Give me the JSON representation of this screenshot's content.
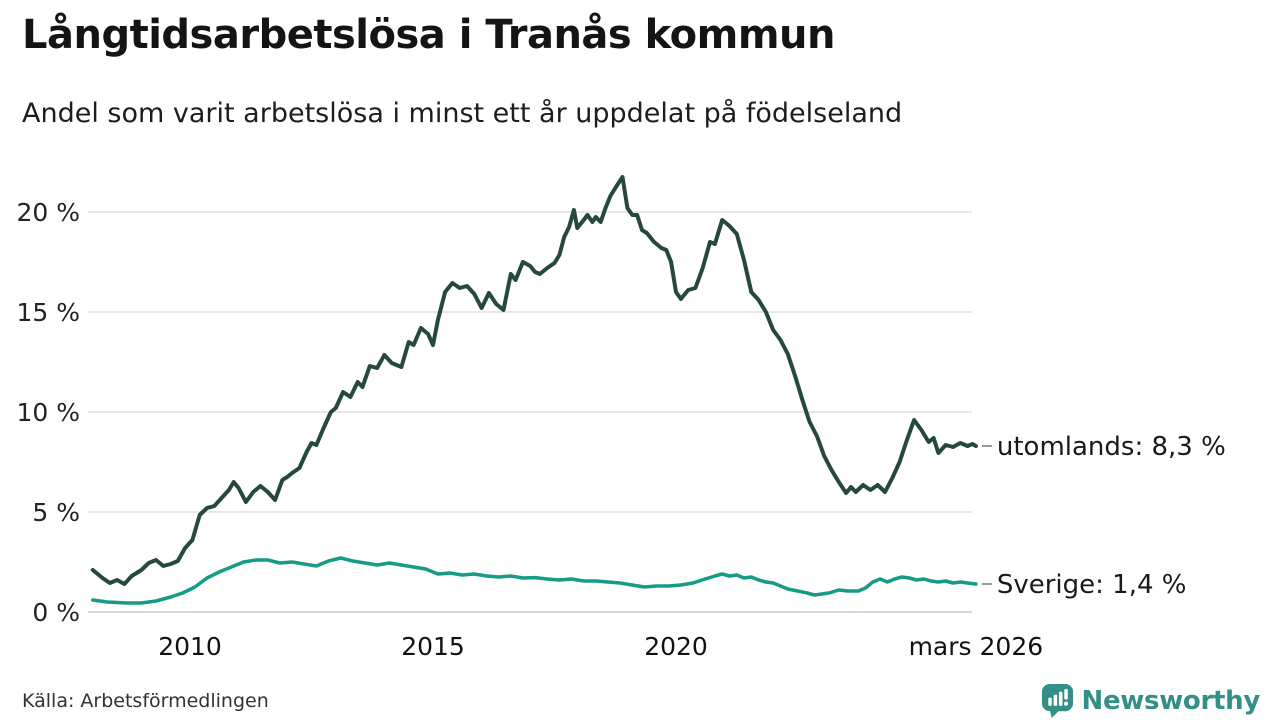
{
  "header": {
    "title": "Långtidsarbetslösa i Tranås kommun",
    "subtitle": "Andel som varit arbetslösa i minst ett år uppdelat på födelseland"
  },
  "footer": {
    "source": "Källa: Arbetsförmedlingen",
    "brand": "Newsworthy"
  },
  "colors": {
    "utomlands_line": "#25493d",
    "sverige_line": "#169b87",
    "grid": "#e7e7e7",
    "zero_line": "#d6d6d6",
    "tick_text": "#222222",
    "label_text": "#1a1a1a",
    "label_dash": "#999999",
    "brand_teal": "#338f87"
  },
  "chart_data": {
    "type": "line",
    "title": "Långtidsarbetslösa i Tranås kommun",
    "subtitle": "Andel som varit arbetslösa i minst ett år uppdelat på födelseland",
    "xlabel": "",
    "ylabel": "",
    "y_axis": {
      "range": [
        0,
        22
      ],
      "grid": true,
      "ticks": [
        {
          "v": 0,
          "label": "0 %"
        },
        {
          "v": 5,
          "label": "5 %"
        },
        {
          "v": 10,
          "label": "10 %"
        },
        {
          "v": 15,
          "label": "15 %"
        },
        {
          "v": 20,
          "label": "20 %"
        }
      ]
    },
    "x_axis": {
      "range": [
        2008.0,
        2026.25
      ],
      "ticks": [
        {
          "t": 2010,
          "label": "2010"
        },
        {
          "t": 2015,
          "label": "2015"
        },
        {
          "t": 2020,
          "label": "2020"
        },
        {
          "t": 2026.17,
          "label": "mars 2026"
        }
      ]
    },
    "legend_position": "end-of-line-labels",
    "series": [
      {
        "name": "utomlands",
        "end_label": "utomlands: 8,3 %",
        "last_value": 8.3,
        "color": "#25493d",
        "stroke_width": 4,
        "points": [
          [
            2008.0,
            2.1
          ],
          [
            2008.2,
            1.7
          ],
          [
            2008.35,
            1.45
          ],
          [
            2008.5,
            1.6
          ],
          [
            2008.65,
            1.4
          ],
          [
            2008.8,
            1.8
          ],
          [
            2009.0,
            2.1
          ],
          [
            2009.15,
            2.45
          ],
          [
            2009.3,
            2.6
          ],
          [
            2009.45,
            2.3
          ],
          [
            2009.6,
            2.4
          ],
          [
            2009.75,
            2.55
          ],
          [
            2009.9,
            3.2
          ],
          [
            2010.05,
            3.6
          ],
          [
            2010.2,
            4.85
          ],
          [
            2010.35,
            5.2
          ],
          [
            2010.5,
            5.3
          ],
          [
            2010.65,
            5.7
          ],
          [
            2010.8,
            6.1
          ],
          [
            2010.9,
            6.5
          ],
          [
            2011.0,
            6.2
          ],
          [
            2011.15,
            5.5
          ],
          [
            2011.3,
            6.0
          ],
          [
            2011.45,
            6.3
          ],
          [
            2011.6,
            6.0
          ],
          [
            2011.75,
            5.6
          ],
          [
            2011.9,
            6.6
          ],
          [
            2012.0,
            6.75
          ],
          [
            2012.1,
            6.95
          ],
          [
            2012.25,
            7.2
          ],
          [
            2012.4,
            8.0
          ],
          [
            2012.5,
            8.45
          ],
          [
            2012.6,
            8.35
          ],
          [
            2012.75,
            9.2
          ],
          [
            2012.9,
            10.0
          ],
          [
            2013.0,
            10.2
          ],
          [
            2013.15,
            11.0
          ],
          [
            2013.3,
            10.75
          ],
          [
            2013.45,
            11.5
          ],
          [
            2013.55,
            11.25
          ],
          [
            2013.7,
            12.3
          ],
          [
            2013.85,
            12.2
          ],
          [
            2014.0,
            12.85
          ],
          [
            2014.15,
            12.45
          ],
          [
            2014.35,
            12.25
          ],
          [
            2014.5,
            13.5
          ],
          [
            2014.6,
            13.35
          ],
          [
            2014.75,
            14.2
          ],
          [
            2014.9,
            13.9
          ],
          [
            2015.0,
            13.35
          ],
          [
            2015.1,
            14.6
          ],
          [
            2015.25,
            16.0
          ],
          [
            2015.4,
            16.45
          ],
          [
            2015.55,
            16.2
          ],
          [
            2015.7,
            16.3
          ],
          [
            2015.85,
            15.9
          ],
          [
            2016.0,
            15.2
          ],
          [
            2016.15,
            15.95
          ],
          [
            2016.3,
            15.4
          ],
          [
            2016.45,
            15.1
          ],
          [
            2016.6,
            16.9
          ],
          [
            2016.7,
            16.6
          ],
          [
            2016.85,
            17.5
          ],
          [
            2017.0,
            17.3
          ],
          [
            2017.1,
            17.0
          ],
          [
            2017.2,
            16.9
          ],
          [
            2017.35,
            17.2
          ],
          [
            2017.5,
            17.45
          ],
          [
            2017.6,
            17.85
          ],
          [
            2017.7,
            18.75
          ],
          [
            2017.8,
            19.25
          ],
          [
            2017.9,
            20.1
          ],
          [
            2017.97,
            19.2
          ],
          [
            2018.1,
            19.6
          ],
          [
            2018.18,
            19.85
          ],
          [
            2018.28,
            19.5
          ],
          [
            2018.35,
            19.75
          ],
          [
            2018.45,
            19.5
          ],
          [
            2018.55,
            20.2
          ],
          [
            2018.65,
            20.8
          ],
          [
            2018.75,
            21.2
          ],
          [
            2018.9,
            21.75
          ],
          [
            2019.0,
            20.2
          ],
          [
            2019.1,
            19.85
          ],
          [
            2019.2,
            19.85
          ],
          [
            2019.3,
            19.1
          ],
          [
            2019.4,
            18.95
          ],
          [
            2019.55,
            18.5
          ],
          [
            2019.7,
            18.2
          ],
          [
            2019.8,
            18.1
          ],
          [
            2019.9,
            17.5
          ],
          [
            2020.0,
            16.0
          ],
          [
            2020.1,
            15.65
          ],
          [
            2020.25,
            16.1
          ],
          [
            2020.4,
            16.2
          ],
          [
            2020.55,
            17.2
          ],
          [
            2020.7,
            18.5
          ],
          [
            2020.8,
            18.4
          ],
          [
            2020.95,
            19.6
          ],
          [
            2021.1,
            19.3
          ],
          [
            2021.25,
            18.9
          ],
          [
            2021.4,
            17.6
          ],
          [
            2021.55,
            16.0
          ],
          [
            2021.7,
            15.6
          ],
          [
            2021.85,
            15.0
          ],
          [
            2022.0,
            14.1
          ],
          [
            2022.15,
            13.6
          ],
          [
            2022.3,
            12.9
          ],
          [
            2022.45,
            11.8
          ],
          [
            2022.6,
            10.6
          ],
          [
            2022.75,
            9.5
          ],
          [
            2022.9,
            8.8
          ],
          [
            2023.05,
            7.8
          ],
          [
            2023.2,
            7.1
          ],
          [
            2023.35,
            6.5
          ],
          [
            2023.5,
            5.95
          ],
          [
            2023.6,
            6.25
          ],
          [
            2023.7,
            6.0
          ],
          [
            2023.85,
            6.35
          ],
          [
            2024.0,
            6.1
          ],
          [
            2024.15,
            6.35
          ],
          [
            2024.3,
            6.0
          ],
          [
            2024.45,
            6.7
          ],
          [
            2024.6,
            7.5
          ],
          [
            2024.75,
            8.6
          ],
          [
            2024.9,
            9.6
          ],
          [
            2025.05,
            9.1
          ],
          [
            2025.2,
            8.5
          ],
          [
            2025.3,
            8.7
          ],
          [
            2025.4,
            7.95
          ],
          [
            2025.55,
            8.35
          ],
          [
            2025.7,
            8.25
          ],
          [
            2025.85,
            8.45
          ],
          [
            2026.0,
            8.3
          ],
          [
            2026.1,
            8.4
          ],
          [
            2026.17,
            8.3
          ]
        ]
      },
      {
        "name": "Sverige",
        "end_label": "Sverige: 1,4 %",
        "last_value": 1.4,
        "color": "#169b87",
        "stroke_width": 3.5,
        "points": [
          [
            2008.0,
            0.6
          ],
          [
            2008.3,
            0.5
          ],
          [
            2008.7,
            0.45
          ],
          [
            2009.0,
            0.45
          ],
          [
            2009.3,
            0.55
          ],
          [
            2009.6,
            0.75
          ],
          [
            2009.85,
            0.95
          ],
          [
            2010.1,
            1.25
          ],
          [
            2010.35,
            1.7
          ],
          [
            2010.6,
            2.0
          ],
          [
            2010.85,
            2.25
          ],
          [
            2011.1,
            2.5
          ],
          [
            2011.35,
            2.6
          ],
          [
            2011.6,
            2.6
          ],
          [
            2011.85,
            2.45
          ],
          [
            2012.1,
            2.5
          ],
          [
            2012.35,
            2.4
          ],
          [
            2012.6,
            2.3
          ],
          [
            2012.85,
            2.55
          ],
          [
            2013.1,
            2.7
          ],
          [
            2013.35,
            2.55
          ],
          [
            2013.6,
            2.45
          ],
          [
            2013.85,
            2.35
          ],
          [
            2014.1,
            2.45
          ],
          [
            2014.35,
            2.35
          ],
          [
            2014.6,
            2.25
          ],
          [
            2014.85,
            2.15
          ],
          [
            2015.1,
            1.9
          ],
          [
            2015.35,
            1.95
          ],
          [
            2015.6,
            1.85
          ],
          [
            2015.85,
            1.9
          ],
          [
            2016.1,
            1.8
          ],
          [
            2016.35,
            1.75
          ],
          [
            2016.6,
            1.8
          ],
          [
            2016.85,
            1.7
          ],
          [
            2017.1,
            1.72
          ],
          [
            2017.35,
            1.65
          ],
          [
            2017.6,
            1.6
          ],
          [
            2017.85,
            1.65
          ],
          [
            2018.1,
            1.55
          ],
          [
            2018.35,
            1.55
          ],
          [
            2018.6,
            1.5
          ],
          [
            2018.85,
            1.45
          ],
          [
            2019.1,
            1.35
          ],
          [
            2019.35,
            1.25
          ],
          [
            2019.6,
            1.3
          ],
          [
            2019.85,
            1.3
          ],
          [
            2020.1,
            1.35
          ],
          [
            2020.35,
            1.45
          ],
          [
            2020.6,
            1.65
          ],
          [
            2020.8,
            1.8
          ],
          [
            2020.95,
            1.9
          ],
          [
            2021.1,
            1.8
          ],
          [
            2021.25,
            1.85
          ],
          [
            2021.4,
            1.7
          ],
          [
            2021.55,
            1.75
          ],
          [
            2021.7,
            1.6
          ],
          [
            2021.85,
            1.5
          ],
          [
            2022.0,
            1.45
          ],
          [
            2022.15,
            1.3
          ],
          [
            2022.3,
            1.15
          ],
          [
            2022.5,
            1.05
          ],
          [
            2022.7,
            0.95
          ],
          [
            2022.85,
            0.85
          ],
          [
            2023.0,
            0.9
          ],
          [
            2023.15,
            0.95
          ],
          [
            2023.35,
            1.1
          ],
          [
            2023.55,
            1.05
          ],
          [
            2023.75,
            1.05
          ],
          [
            2023.9,
            1.2
          ],
          [
            2024.05,
            1.5
          ],
          [
            2024.2,
            1.65
          ],
          [
            2024.35,
            1.5
          ],
          [
            2024.5,
            1.65
          ],
          [
            2024.65,
            1.75
          ],
          [
            2024.8,
            1.7
          ],
          [
            2024.95,
            1.6
          ],
          [
            2025.1,
            1.65
          ],
          [
            2025.25,
            1.55
          ],
          [
            2025.4,
            1.5
          ],
          [
            2025.55,
            1.55
          ],
          [
            2025.7,
            1.45
          ],
          [
            2025.85,
            1.5
          ],
          [
            2026.0,
            1.45
          ],
          [
            2026.17,
            1.4
          ]
        ]
      }
    ]
  }
}
